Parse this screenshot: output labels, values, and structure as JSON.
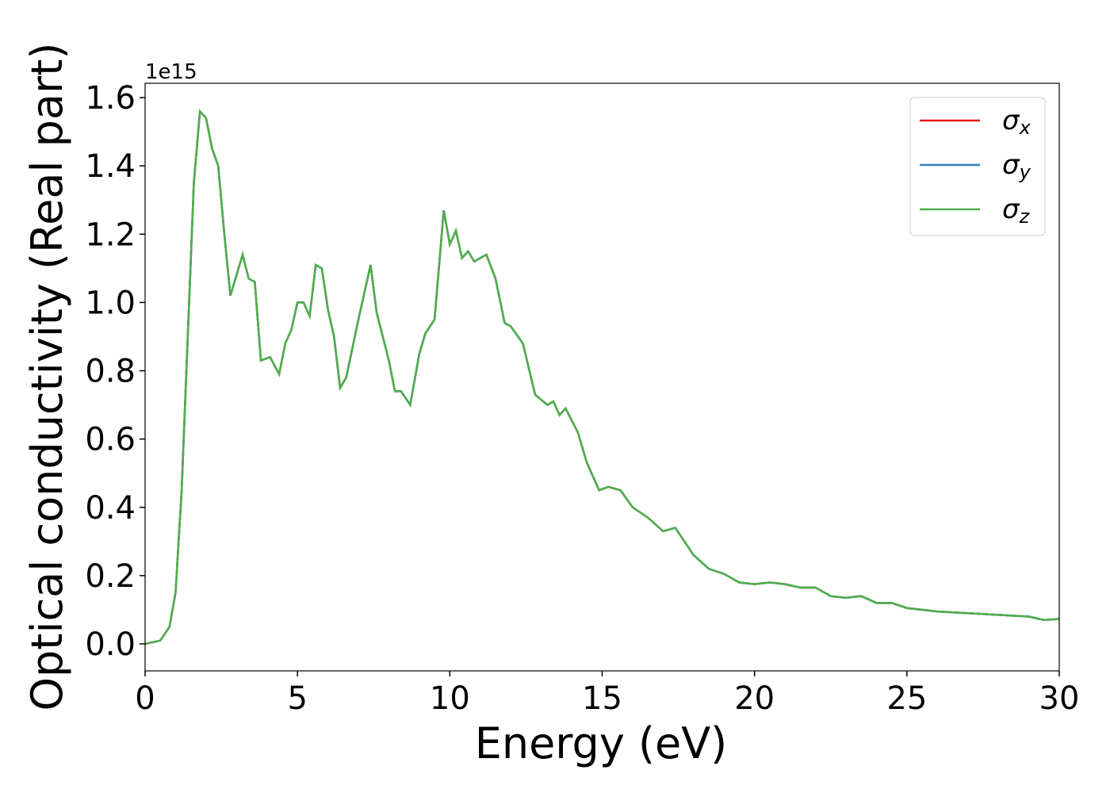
{
  "chart_data": {
    "type": "line",
    "xlabel": "Energy (eV)",
    "ylabel": "Optical conductivity (Real part)",
    "y_offset_label": "1e15",
    "x": [
      0,
      0.5,
      0.8,
      1.0,
      1.2,
      1.4,
      1.6,
      1.8,
      2.0,
      2.2,
      2.4,
      2.6,
      2.8,
      3.0,
      3.2,
      3.4,
      3.6,
      3.8,
      4.1,
      4.4,
      4.6,
      4.8,
      5.0,
      5.2,
      5.4,
      5.6,
      5.8,
      6.0,
      6.2,
      6.4,
      6.6,
      7.0,
      7.2,
      7.4,
      7.6,
      7.8,
      8.0,
      8.2,
      8.4,
      8.7,
      9.0,
      9.2,
      9.5,
      9.8,
      10.0,
      10.2,
      10.4,
      10.6,
      10.8,
      11.2,
      11.5,
      11.8,
      12.0,
      12.4,
      12.8,
      13.2,
      13.4,
      13.6,
      13.8,
      14.2,
      14.5,
      14.9,
      15.2,
      15.6,
      16.0,
      16.5,
      17.0,
      17.4,
      18.0,
      18.5,
      19.0,
      19.5,
      20.0,
      20.5,
      21.0,
      21.5,
      22.0,
      22.5,
      23.0,
      23.5,
      24.0,
      24.5,
      25.0,
      26.0,
      27.0,
      28.0,
      29.0,
      29.5,
      30.0
    ],
    "series": [
      {
        "name": "σx",
        "color": "#e41a1c",
        "values": [
          0,
          0.01,
          0.05,
          0.15,
          0.45,
          0.9,
          1.35,
          1.56,
          1.54,
          1.45,
          1.4,
          1.2,
          1.02,
          1.08,
          1.14,
          1.07,
          1.06,
          0.83,
          0.84,
          0.79,
          0.88,
          0.92,
          1.0,
          1.0,
          0.96,
          1.11,
          1.1,
          0.98,
          0.9,
          0.75,
          0.78,
          0.95,
          1.03,
          1.11,
          0.97,
          0.9,
          0.83,
          0.74,
          0.74,
          0.7,
          0.85,
          0.91,
          0.95,
          1.27,
          1.17,
          1.21,
          1.13,
          1.15,
          1.12,
          1.14,
          1.07,
          0.94,
          0.93,
          0.88,
          0.73,
          0.7,
          0.71,
          0.67,
          0.69,
          0.62,
          0.53,
          0.45,
          0.46,
          0.45,
          0.4,
          0.37,
          0.33,
          0.34,
          0.26,
          0.22,
          0.205,
          0.18,
          0.175,
          0.18,
          0.175,
          0.165,
          0.165,
          0.14,
          0.135,
          0.14,
          0.12,
          0.12,
          0.105,
          0.095,
          0.09,
          0.085,
          0.08,
          0.07,
          0.073
        ]
      },
      {
        "name": "σy",
        "color": "#377eb8",
        "values": [
          0,
          0.01,
          0.05,
          0.15,
          0.45,
          0.9,
          1.35,
          1.56,
          1.54,
          1.45,
          1.4,
          1.2,
          1.02,
          1.08,
          1.14,
          1.07,
          1.06,
          0.83,
          0.84,
          0.79,
          0.88,
          0.92,
          1.0,
          1.0,
          0.96,
          1.11,
          1.1,
          0.98,
          0.9,
          0.75,
          0.78,
          0.95,
          1.03,
          1.11,
          0.97,
          0.9,
          0.83,
          0.74,
          0.74,
          0.7,
          0.85,
          0.91,
          0.95,
          1.27,
          1.17,
          1.21,
          1.13,
          1.15,
          1.12,
          1.14,
          1.07,
          0.94,
          0.93,
          0.88,
          0.73,
          0.7,
          0.71,
          0.67,
          0.69,
          0.62,
          0.53,
          0.45,
          0.46,
          0.45,
          0.4,
          0.37,
          0.33,
          0.34,
          0.26,
          0.22,
          0.205,
          0.18,
          0.175,
          0.18,
          0.175,
          0.165,
          0.165,
          0.14,
          0.135,
          0.14,
          0.12,
          0.12,
          0.105,
          0.095,
          0.09,
          0.085,
          0.08,
          0.07,
          0.073
        ]
      },
      {
        "name": "σz",
        "color": "#4daf4a",
        "values": [
          0,
          0.01,
          0.05,
          0.15,
          0.45,
          0.9,
          1.35,
          1.56,
          1.54,
          1.45,
          1.4,
          1.2,
          1.02,
          1.08,
          1.14,
          1.07,
          1.06,
          0.83,
          0.84,
          0.79,
          0.88,
          0.92,
          1.0,
          1.0,
          0.96,
          1.11,
          1.1,
          0.98,
          0.9,
          0.75,
          0.78,
          0.95,
          1.03,
          1.11,
          0.97,
          0.9,
          0.83,
          0.74,
          0.74,
          0.7,
          0.85,
          0.91,
          0.95,
          1.27,
          1.17,
          1.21,
          1.13,
          1.15,
          1.12,
          1.14,
          1.07,
          0.94,
          0.93,
          0.88,
          0.73,
          0.7,
          0.71,
          0.67,
          0.69,
          0.62,
          0.53,
          0.45,
          0.46,
          0.45,
          0.4,
          0.37,
          0.33,
          0.34,
          0.26,
          0.22,
          0.205,
          0.18,
          0.175,
          0.18,
          0.175,
          0.165,
          0.165,
          0.14,
          0.135,
          0.14,
          0.12,
          0.12,
          0.105,
          0.095,
          0.09,
          0.085,
          0.08,
          0.07,
          0.073
        ]
      }
    ],
    "xlim": [
      0,
      30
    ],
    "xticks": [
      0,
      5,
      10,
      15,
      20,
      25,
      30
    ],
    "ylim": [
      -0.079,
      1.642
    ],
    "yticks": [
      {
        "value": 0,
        "label": "0.0"
      },
      0.2,
      0.4,
      0.6,
      0.8,
      {
        "value": 1,
        "label": "1.0"
      },
      1.2,
      1.4,
      1.6
    ],
    "legend": "upper right",
    "grid": false
  }
}
